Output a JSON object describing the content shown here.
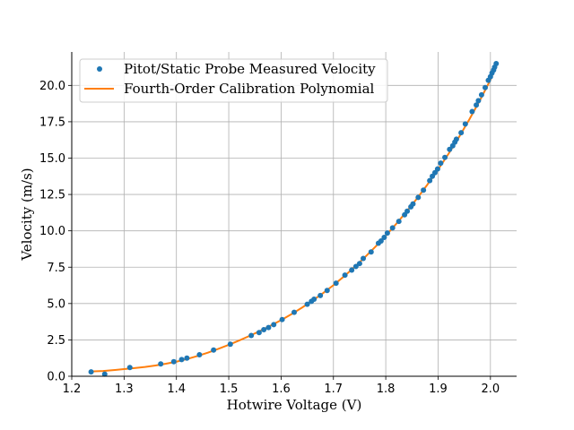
{
  "chart_data": {
    "type": "scatter",
    "title": "",
    "xlabel": "Hotwire Voltage (V)",
    "ylabel": "Velocity (m/s)",
    "xlim": [
      1.2,
      2.05
    ],
    "ylim": [
      0,
      22.3
    ],
    "xticks": [
      "1.2",
      "1.3",
      "1.4",
      "1.5",
      "1.6",
      "1.7",
      "1.8",
      "1.9",
      "2.0"
    ],
    "yticks": [
      "0.0",
      "2.5",
      "5.0",
      "7.5",
      "10.0",
      "12.5",
      "15.0",
      "17.5",
      "20.0"
    ],
    "grid": true,
    "legend_position": "top-left",
    "colors": {
      "points": "#1f77b4",
      "line": "#ff7f0e"
    },
    "series": [
      {
        "name": "Pitot/Static Probe Measured Velocity",
        "type": "scatter",
        "points": [
          [
            1.237,
            0.3
          ],
          [
            1.263,
            0.15
          ],
          [
            1.311,
            0.6
          ],
          [
            1.37,
            0.85
          ],
          [
            1.395,
            1.0
          ],
          [
            1.41,
            1.15
          ],
          [
            1.42,
            1.25
          ],
          [
            1.444,
            1.48
          ],
          [
            1.471,
            1.8
          ],
          [
            1.503,
            2.2
          ],
          [
            1.543,
            2.8
          ],
          [
            1.558,
            3.0
          ],
          [
            1.567,
            3.2
          ],
          [
            1.576,
            3.35
          ],
          [
            1.586,
            3.55
          ],
          [
            1.602,
            3.9
          ],
          [
            1.625,
            4.4
          ],
          [
            1.65,
            4.95
          ],
          [
            1.658,
            5.15
          ],
          [
            1.663,
            5.3
          ],
          [
            1.675,
            5.55
          ],
          [
            1.688,
            5.9
          ],
          [
            1.705,
            6.4
          ],
          [
            1.722,
            6.95
          ],
          [
            1.735,
            7.3
          ],
          [
            1.743,
            7.55
          ],
          [
            1.75,
            7.75
          ],
          [
            1.757,
            8.1
          ],
          [
            1.772,
            8.55
          ],
          [
            1.786,
            9.15
          ],
          [
            1.791,
            9.3
          ],
          [
            1.797,
            9.55
          ],
          [
            1.803,
            9.85
          ],
          [
            1.813,
            10.2
          ],
          [
            1.825,
            10.65
          ],
          [
            1.836,
            11.1
          ],
          [
            1.841,
            11.35
          ],
          [
            1.848,
            11.65
          ],
          [
            1.852,
            11.85
          ],
          [
            1.862,
            12.3
          ],
          [
            1.872,
            12.8
          ],
          [
            1.884,
            13.45
          ],
          [
            1.889,
            13.75
          ],
          [
            1.894,
            14.0
          ],
          [
            1.899,
            14.25
          ],
          [
            1.905,
            14.65
          ],
          [
            1.913,
            15.05
          ],
          [
            1.922,
            15.6
          ],
          [
            1.928,
            15.85
          ],
          [
            1.932,
            16.1
          ],
          [
            1.935,
            16.3
          ],
          [
            1.944,
            16.75
          ],
          [
            1.952,
            17.35
          ],
          [
            1.965,
            18.2
          ],
          [
            1.973,
            18.65
          ],
          [
            1.977,
            18.95
          ],
          [
            1.983,
            19.35
          ],
          [
            1.99,
            19.85
          ],
          [
            1.996,
            20.35
          ],
          [
            2.0,
            20.6
          ],
          [
            2.003,
            20.85
          ],
          [
            2.006,
            21.05
          ],
          [
            2.008,
            21.25
          ],
          [
            2.011,
            21.5
          ]
        ]
      },
      {
        "name": "Fourth-Order Calibration Polynomial",
        "type": "line",
        "points": [
          [
            1.237,
            0.33
          ],
          [
            1.26,
            0.36
          ],
          [
            1.28,
            0.42
          ],
          [
            1.3,
            0.49
          ],
          [
            1.32,
            0.56
          ],
          [
            1.34,
            0.64
          ],
          [
            1.36,
            0.74
          ],
          [
            1.38,
            0.86
          ],
          [
            1.4,
            1.0
          ],
          [
            1.42,
            1.18
          ],
          [
            1.44,
            1.39
          ],
          [
            1.46,
            1.62
          ],
          [
            1.48,
            1.88
          ],
          [
            1.5,
            2.16
          ],
          [
            1.52,
            2.46
          ],
          [
            1.54,
            2.78
          ],
          [
            1.56,
            3.12
          ],
          [
            1.58,
            3.48
          ],
          [
            1.6,
            3.86
          ],
          [
            1.62,
            4.27
          ],
          [
            1.64,
            4.72
          ],
          [
            1.66,
            5.2
          ],
          [
            1.68,
            5.71
          ],
          [
            1.7,
            6.26
          ],
          [
            1.72,
            6.86
          ],
          [
            1.74,
            7.5
          ],
          [
            1.76,
            8.18
          ],
          [
            1.78,
            8.9
          ],
          [
            1.8,
            9.67
          ],
          [
            1.82,
            10.48
          ],
          [
            1.84,
            11.33
          ],
          [
            1.86,
            12.24
          ],
          [
            1.88,
            13.2
          ],
          [
            1.9,
            14.22
          ],
          [
            1.92,
            15.3
          ],
          [
            1.94,
            16.45
          ],
          [
            1.96,
            17.68
          ],
          [
            1.98,
            18.98
          ],
          [
            2.0,
            20.38
          ],
          [
            2.011,
            21.4
          ]
        ]
      }
    ]
  }
}
